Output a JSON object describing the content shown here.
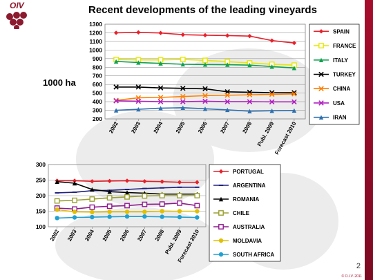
{
  "title": "Recent developments of the leading vineyards",
  "unit_label": "1000 ha",
  "logo_text": "OIV",
  "slide_number": "2",
  "copyright": "© O.I.V. 2011",
  "chart_data": [
    {
      "type": "line",
      "categories": [
        "2002",
        "2003",
        "2004",
        "2005",
        "2006",
        "2007",
        "2008",
        "Publ. 2009",
        "Forecast 2010"
      ],
      "ylim": [
        200,
        1300
      ],
      "yticks": [
        200,
        300,
        400,
        500,
        600,
        700,
        800,
        900,
        1000,
        1100,
        1200,
        1300
      ],
      "grid": true,
      "legend": "right",
      "series": [
        {
          "name": "SPAIN",
          "color": "#e8202a",
          "marker": "diamond",
          "values": [
            1200,
            1205,
            1198,
            1178,
            1172,
            1168,
            1162,
            1110,
            1082
          ]
        },
        {
          "name": "FRANCE",
          "color": "#e8e800",
          "marker": "square",
          "values": [
            890,
            885,
            885,
            890,
            880,
            865,
            850,
            835,
            825
          ]
        },
        {
          "name": "ITALY",
          "color": "#10a050",
          "marker": "triangle",
          "values": [
            868,
            855,
            845,
            835,
            832,
            830,
            825,
            808,
            792
          ]
        },
        {
          "name": "TURKEY",
          "color": "#000000",
          "marker": "x",
          "values": [
            570,
            570,
            560,
            555,
            550,
            515,
            510,
            505,
            505
          ]
        },
        {
          "name": "CHINA",
          "color": "#ff7f00",
          "marker": "x",
          "values": [
            415,
            445,
            450,
            460,
            470,
            475,
            480,
            485,
            490
          ]
        },
        {
          "name": "USA",
          "color": "#b020c0",
          "marker": "x",
          "values": [
            410,
            405,
            400,
            400,
            405,
            400,
            400,
            398,
            398
          ]
        },
        {
          "name": "IRAN",
          "color": "#2f70b0",
          "marker": "triangle",
          "values": [
            300,
            312,
            325,
            330,
            318,
            305,
            290,
            295,
            298
          ]
        }
      ]
    },
    {
      "type": "line",
      "categories": [
        "2002",
        "2003",
        "2004",
        "2005",
        "2006",
        "2007",
        "2008",
        "Publ. 2009",
        "Forecast 2010"
      ],
      "ylim": [
        100,
        300
      ],
      "yticks": [
        100,
        150,
        200,
        250,
        300
      ],
      "grid": true,
      "legend": "right",
      "series": [
        {
          "name": "PORTUGAL",
          "color": "#e8202a",
          "marker": "diamond",
          "values": [
            248,
            248,
            246,
            247,
            248,
            246,
            245,
            243,
            243
          ]
        },
        {
          "name": "ARGENTINA",
          "color": "#202080",
          "marker": "dash",
          "values": [
            209,
            211,
            216,
            217,
            220,
            223,
            225,
            227,
            227
          ]
        },
        {
          "name": "ROMANIA",
          "color": "#000000",
          "marker": "triangle",
          "values": [
            245,
            240,
            220,
            213,
            210,
            208,
            205,
            205,
            205
          ]
        },
        {
          "name": "CHILE",
          "color": "#9aa030",
          "marker": "square",
          "values": [
            183,
            185,
            189,
            193,
            196,
            199,
            200,
            200,
            200
          ]
        },
        {
          "name": "AUSTRALIA",
          "color": "#8e1b8e",
          "marker": "square",
          "values": [
            160,
            157,
            163,
            166,
            168,
            172,
            173,
            176,
            168
          ]
        },
        {
          "name": "MOLDAVIA",
          "color": "#e0c000",
          "marker": "circle",
          "values": [
            155,
            148,
            147,
            148,
            148,
            148,
            150,
            150,
            150
          ]
        },
        {
          "name": "SOUTH AFRICA",
          "color": "#20a0d0",
          "marker": "circle",
          "values": [
            128,
            130,
            131,
            132,
            133,
            133,
            132,
            131,
            130
          ]
        }
      ]
    }
  ]
}
